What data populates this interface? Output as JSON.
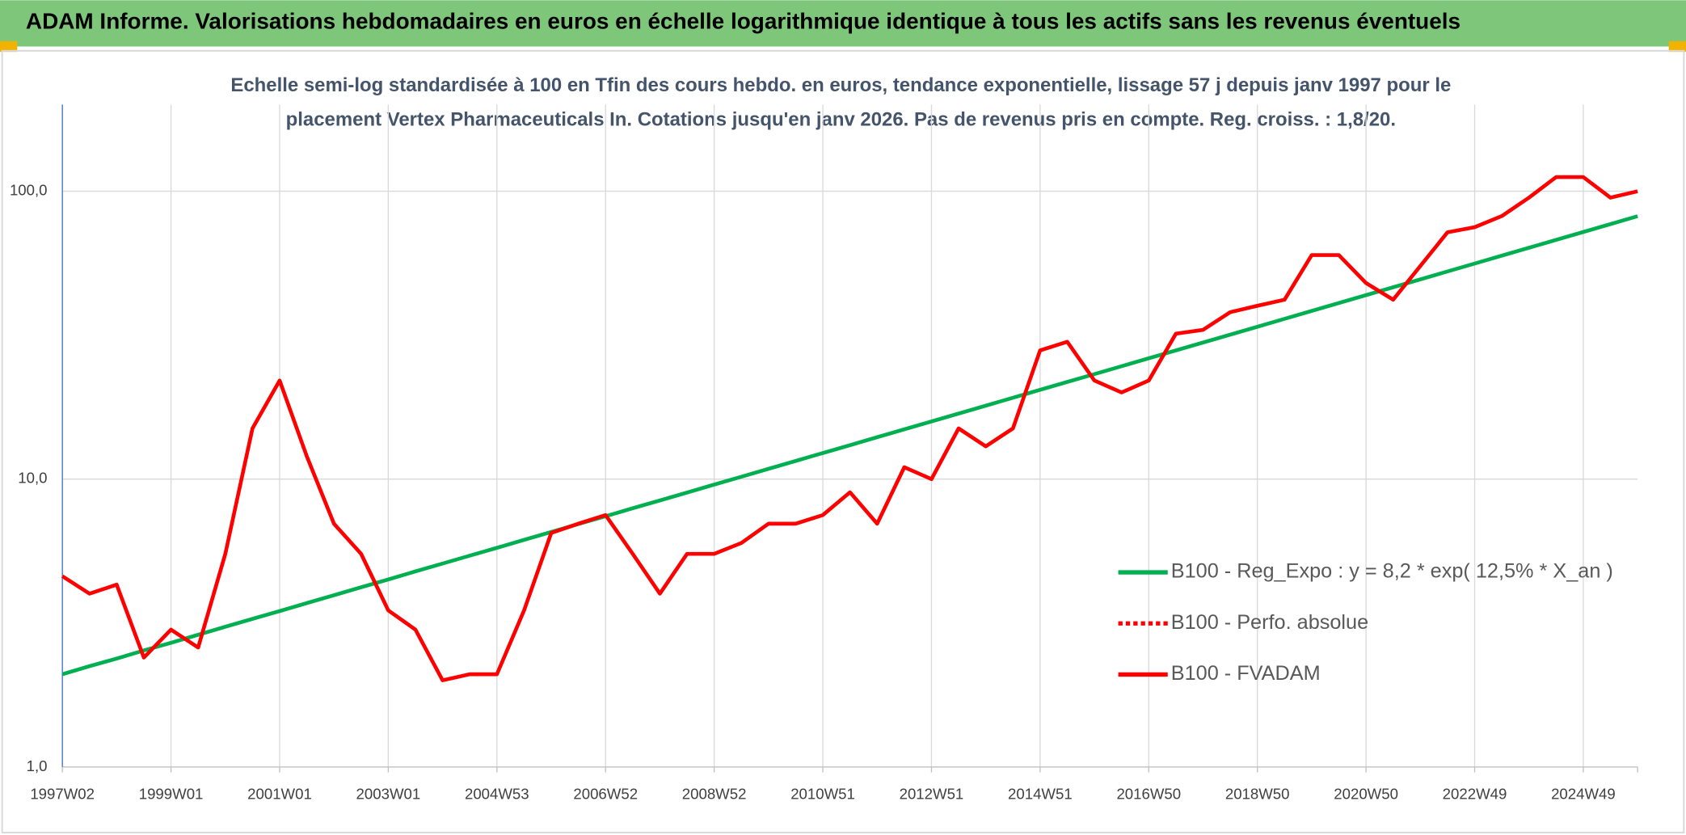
{
  "chart_data": {
    "type": "line",
    "title": "ADAM Informe. Valorisations hebdomadaires en euros en échelle logarithmique identique à tous les actifs sans les revenus éventuels",
    "subtitle_lines": [
      "Echelle semi-log standardisée à 100 en Tfin des cours hebdo. en euros, tendance exponentielle, lissage 57 j depuis janv 1997 pour le",
      "placement Vertex Pharmaceuticals In. Cotations jusqu'en janv 2026. Pas de revenus pris en compte. Reg. croiss. : 1,8/20."
    ],
    "categories": [
      "1997W02",
      null,
      null,
      null,
      "1999W01",
      null,
      null,
      null,
      "2001W01",
      null,
      null,
      null,
      "2003W01",
      null,
      null,
      null,
      "2004W53",
      null,
      null,
      null,
      "2006W52",
      null,
      null,
      null,
      "2008W52",
      null,
      null,
      null,
      "2010W51",
      null,
      null,
      null,
      "2012W51",
      null,
      null,
      null,
      "2014W51",
      null,
      null,
      null,
      "2016W50",
      null,
      null,
      null,
      "2018W50",
      null,
      null,
      null,
      "2020W50",
      null,
      null,
      null,
      "2022W49",
      null,
      null,
      null,
      "2024W49",
      null,
      null
    ],
    "series": [
      {
        "name": "B100 - Reg_Expo : y = 8,2 * exp( 12,5% *  X_an )",
        "color": "#00b050",
        "dash": "solid",
        "values": [
          2.1,
          2.24,
          2.38,
          2.54,
          2.7,
          2.88,
          3.07,
          3.27,
          3.48,
          3.71,
          3.95,
          4.21,
          4.48,
          4.78,
          5.09,
          5.42,
          5.77,
          6.15,
          6.55,
          6.98,
          7.43,
          7.92,
          8.43,
          8.98,
          9.57,
          10.19,
          10.86,
          11.56,
          12.32,
          13.12,
          13.98,
          14.89,
          15.86,
          16.89,
          17.99,
          19.17,
          20.42,
          21.75,
          23.16,
          24.67,
          26.28,
          27.99,
          29.82,
          31.76,
          33.83,
          36.04,
          38.39,
          40.89,
          43.55,
          46.39,
          49.42,
          52.64,
          56.07,
          59.73,
          63.62,
          67.77,
          72.19,
          76.9,
          81.91
        ]
      },
      {
        "name": "B100 - Perfo. absolue",
        "color": "#ff0000",
        "dash": "dotted"
      },
      {
        "name": "B100 - FVADAM",
        "color": "#ff0000",
        "dash": "solid",
        "values": [
          4.6,
          4.0,
          4.3,
          2.4,
          3.0,
          2.6,
          5.5,
          15,
          22,
          12,
          7.0,
          5.5,
          3.5,
          3.0,
          2.0,
          2.1,
          2.1,
          3.5,
          6.5,
          7.0,
          7.5,
          5.5,
          4.0,
          5.5,
          5.5,
          6.0,
          7.0,
          7.0,
          7.5,
          9.0,
          7.0,
          11,
          10,
          15,
          13,
          15,
          28,
          30,
          22,
          20,
          22,
          32,
          33,
          38,
          40,
          42,
          60,
          60,
          48,
          42,
          55,
          72,
          75,
          82,
          95,
          112,
          112,
          95,
          100
        ]
      }
    ],
    "ylim": [
      1,
      200
    ],
    "yticks": [
      {
        "value": 1,
        "label": "1,0"
      },
      {
        "value": 10,
        "label": "10,0"
      },
      {
        "value": 100,
        "label": "100,0"
      }
    ],
    "log_scale": true,
    "grid": true,
    "legend_position": "right"
  }
}
